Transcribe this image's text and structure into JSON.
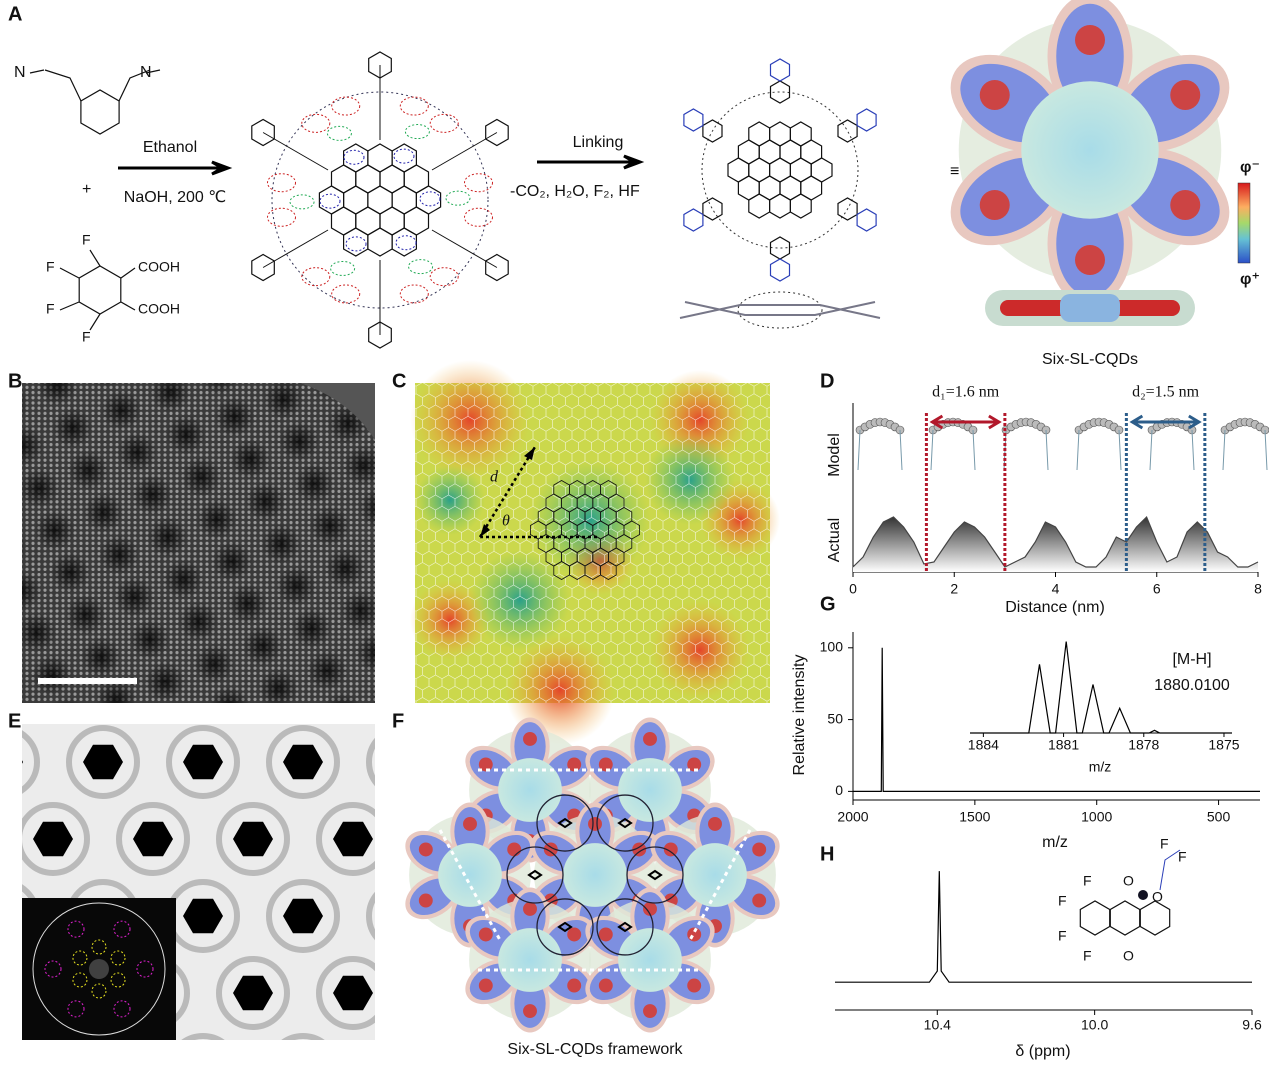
{
  "figure": {
    "panel_labels": [
      "A",
      "B",
      "C",
      "D",
      "E",
      "F",
      "G",
      "H"
    ],
    "A": {
      "reactant_1_atoms": [
        "N",
        "N"
      ],
      "plus": "+",
      "reactant_2_atoms": [
        "F",
        "F",
        "F",
        "F",
        "COOH",
        "COOH"
      ],
      "step_1_top": "Ethanol",
      "step_1_bottom": "NaOH, 200 ℃",
      "step_2_top": "Linking",
      "step_2_bottom": "-CO₂, H₂O, F₂, HF",
      "equivalence": "≡",
      "potential_negative": "φ⁻",
      "potential_positive": "φ⁺",
      "caption": "Six-SL-CQDs"
    },
    "C": {
      "distance_label": "d",
      "angle_label": "θ"
    },
    "F": {
      "caption": "Six-SL-CQDs framework"
    },
    "H_molecule_atoms": [
      "F",
      "F",
      "F",
      "F",
      "O",
      "O",
      "O",
      "F",
      "F"
    ]
  },
  "chart_data": [
    {
      "type": "area",
      "x_label": "Distance (nm)",
      "y_labels": [
        "Model",
        "Actual"
      ],
      "x": [
        0,
        0.2,
        0.4,
        0.6,
        0.8,
        1.0,
        1.2,
        1.4,
        1.6,
        1.8,
        2.0,
        2.2,
        2.4,
        2.6,
        2.8,
        3.0,
        3.2,
        3.4,
        3.6,
        3.8,
        4.0,
        4.2,
        4.4,
        4.6,
        4.8,
        5.0,
        5.2,
        5.4,
        5.6,
        5.8,
        6.0,
        6.2,
        6.4,
        6.6,
        6.8,
        7.0,
        7.2,
        7.4,
        7.6,
        7.8,
        8.0
      ],
      "values": [
        0.05,
        0.15,
        0.35,
        0.5,
        0.55,
        0.45,
        0.3,
        0.08,
        0.1,
        0.25,
        0.4,
        0.5,
        0.45,
        0.35,
        0.2,
        0.05,
        0.1,
        0.15,
        0.3,
        0.5,
        0.45,
        0.3,
        0.1,
        0.05,
        0.05,
        0.15,
        0.35,
        0.3,
        0.45,
        0.55,
        0.3,
        0.1,
        0.15,
        0.4,
        0.5,
        0.4,
        0.2,
        0.15,
        0.05,
        0.05,
        0.1
      ],
      "color": "#444444",
      "xlim": [
        0,
        8
      ],
      "xticks": [
        0,
        2,
        4,
        6,
        8
      ],
      "ylim": [
        0,
        1
      ],
      "markers": [
        {
          "label": "d₁=1.6 nm",
          "x": [
            1.45,
            3.0
          ],
          "color": "#b2182b"
        },
        {
          "label": "d₂=1.5 nm",
          "x": [
            5.4,
            6.95
          ],
          "color": "#2c5d8a"
        }
      ]
    },
    {
      "type": "line",
      "y_label": "Relative intensity",
      "x_label": "m/z",
      "x": [
        2000,
        1884,
        1880,
        1876,
        330
      ],
      "values": [
        0,
        0,
        100,
        0,
        0
      ],
      "color": "#000000",
      "xlim": [
        2000,
        330
      ],
      "xticks": [
        2000,
        1500,
        1000,
        500
      ],
      "ylim": [
        -6,
        111
      ],
      "yticks": [
        0,
        50,
        100
      ],
      "inset": {
        "x": [
          1884.5,
          1882.3,
          1881.9,
          1881.5,
          1881.3,
          1880.9,
          1880.5,
          1880.3,
          1879.9,
          1879.5,
          1879.3,
          1878.9,
          1878.5,
          1877.8,
          1877.6,
          1877.4,
          1874.7
        ],
        "values": [
          0,
          0,
          75,
          0,
          0,
          100,
          0,
          0,
          53,
          0,
          0,
          27,
          0,
          0,
          3,
          0,
          0
        ],
        "xlim": [
          1884.5,
          1874.7
        ],
        "xticks": [
          1884,
          1881,
          1878,
          1875
        ],
        "ylim": [
          0,
          105
        ],
        "x_label": "m/z",
        "annotation": [
          "[M-H]",
          "1880.0100"
        ]
      }
    },
    {
      "type": "line",
      "x_label": "δ (ppm)",
      "x": [
        10.66,
        10.42,
        10.4,
        10.395,
        10.39,
        10.37,
        9.6
      ],
      "values": [
        0,
        0,
        0.1,
        1,
        0.1,
        0,
        0
      ],
      "color": "#000000",
      "xlim": [
        10.66,
        9.6
      ],
      "xticks": [
        10.4,
        {
          "value": 10,
          "label": "10.0"
        },
        9.6
      ],
      "ylim": [
        -0.25,
        1.1
      ]
    }
  ]
}
